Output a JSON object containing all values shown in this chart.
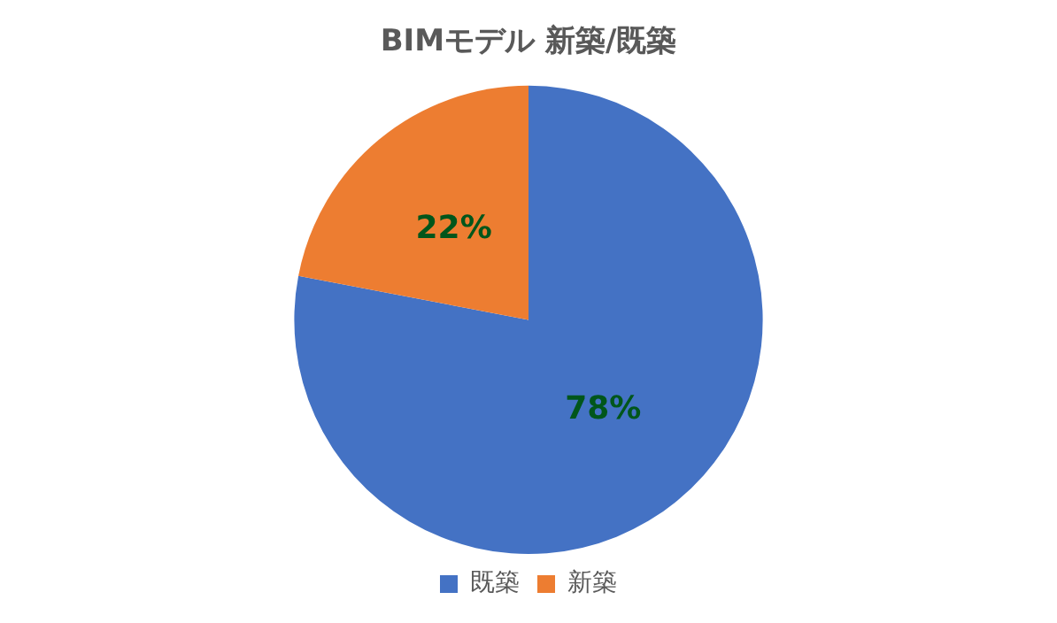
{
  "chart_data": {
    "type": "pie",
    "title": "BIMモデル 新築/既築",
    "categories": [
      "既築",
      "新築"
    ],
    "values": [
      78,
      22
    ],
    "colors": [
      "#4472c4",
      "#ed7d31"
    ],
    "value_labels": [
      "78%",
      "22%"
    ],
    "legend": "bottom"
  }
}
